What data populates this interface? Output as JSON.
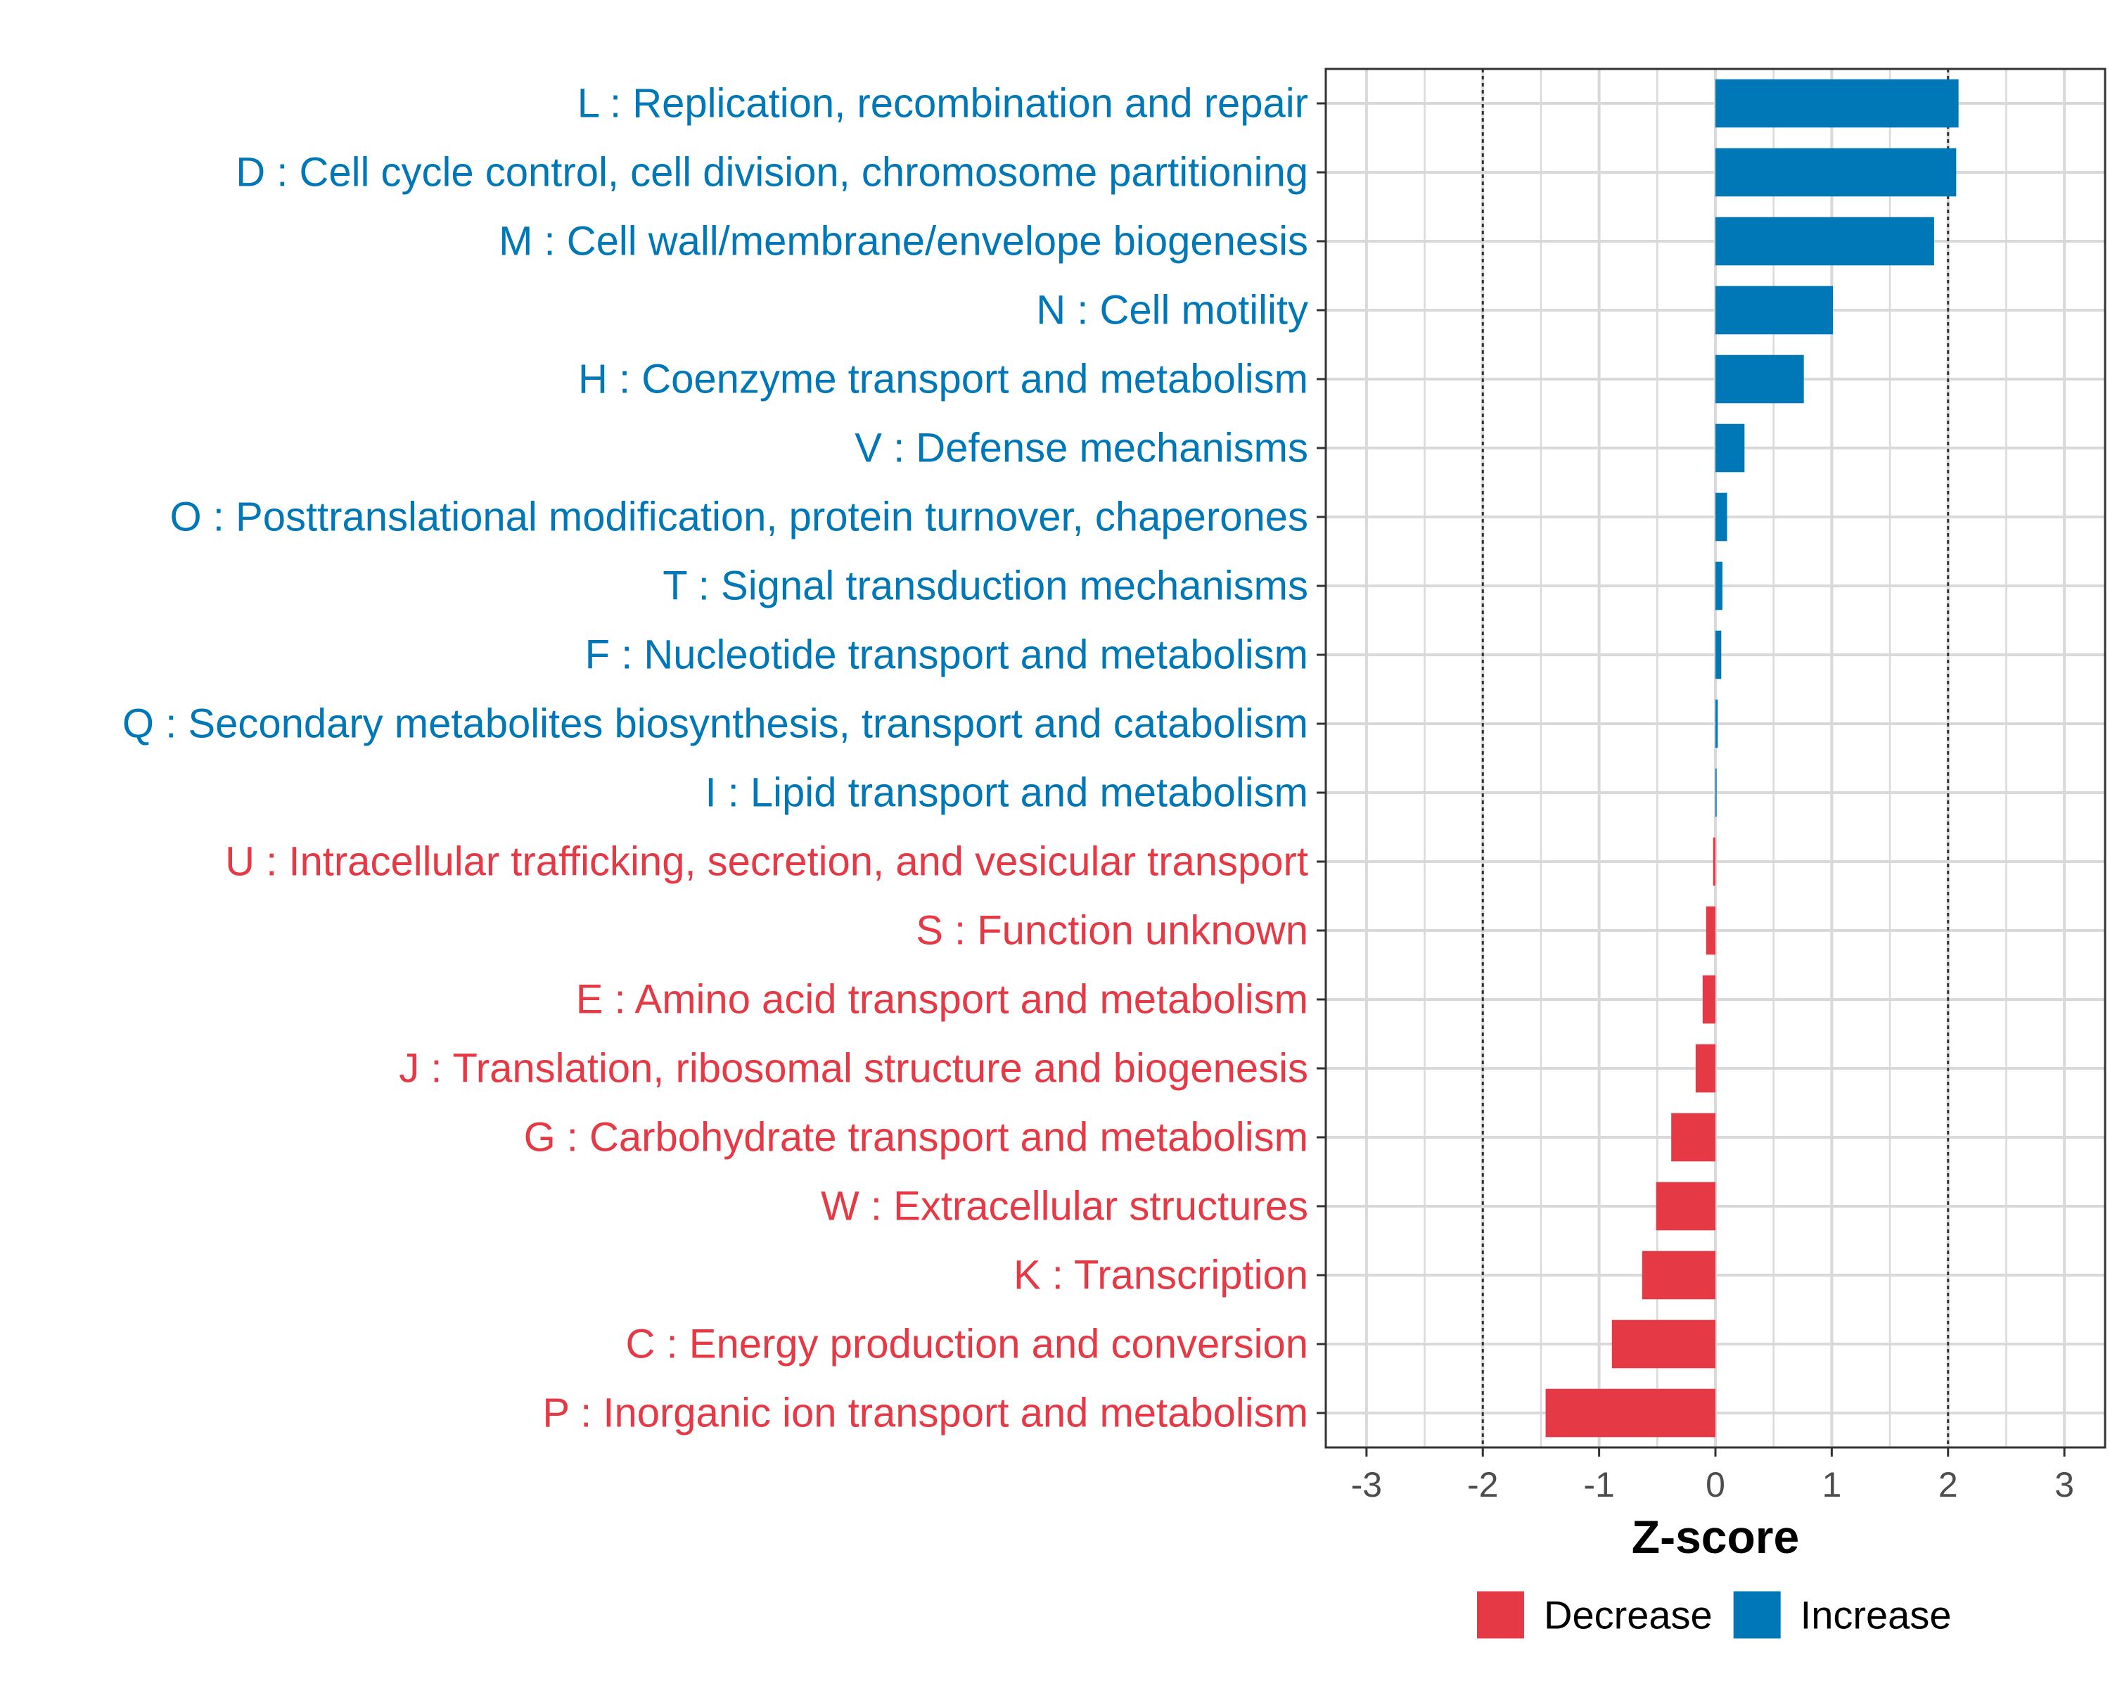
{
  "chart_data": {
    "type": "bar",
    "orientation": "horizontal",
    "xlabel": "Z-score",
    "xlim": [
      -3.35,
      3.35
    ],
    "xticks": [
      -3,
      -2,
      -1,
      0,
      1,
      2,
      3
    ],
    "threshold_lines": [
      -2,
      2
    ],
    "grid": true,
    "legend_position": "bottom",
    "colors": {
      "Decrease": "#e63946",
      "Increase": "#0077b6"
    },
    "legend": [
      {
        "name": "Decrease",
        "color": "#e63946"
      },
      {
        "name": "Increase",
        "color": "#0077b6"
      }
    ],
    "categories": [
      "L : Replication, recombination and repair",
      "D : Cell cycle control, cell division, chromosome partitioning",
      "M : Cell wall/membrane/envelope biogenesis",
      "N : Cell motility",
      "H : Coenzyme transport and metabolism",
      "V : Defense mechanisms",
      "O : Posttranslational modification, protein turnover, chaperones",
      "T : Signal transduction mechanisms",
      "F : Nucleotide transport and metabolism",
      "Q : Secondary metabolites biosynthesis, transport and catabolism",
      "I : Lipid transport and metabolism",
      "U : Intracellular trafficking, secretion, and vesicular transport",
      "S : Function unknown",
      "E : Amino acid transport and metabolism",
      "J : Translation, ribosomal structure and biogenesis",
      "G : Carbohydrate transport and metabolism",
      "W : Extracellular structures",
      "K : Transcription",
      "C : Energy production and conversion",
      "P : Inorganic ion transport and metabolism"
    ],
    "values": [
      2.09,
      2.07,
      1.88,
      1.01,
      0.76,
      0.25,
      0.1,
      0.06,
      0.05,
      0.02,
      0.01,
      -0.02,
      -0.08,
      -0.11,
      -0.17,
      -0.38,
      -0.51,
      -0.63,
      -0.89,
      -1.46
    ],
    "groups": [
      "Increase",
      "Increase",
      "Increase",
      "Increase",
      "Increase",
      "Increase",
      "Increase",
      "Increase",
      "Increase",
      "Increase",
      "Increase",
      "Decrease",
      "Decrease",
      "Decrease",
      "Decrease",
      "Decrease",
      "Decrease",
      "Decrease",
      "Decrease",
      "Decrease"
    ]
  }
}
